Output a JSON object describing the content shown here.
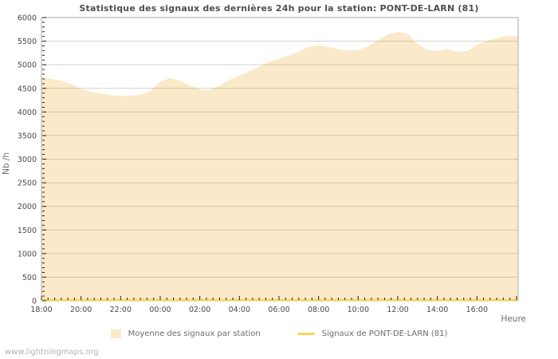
{
  "title": "Statistique des signaux des dernières 24h pour la station: PONT-DE-LARN (81)",
  "watermark": "www.lightningmaps.org",
  "axes": {
    "y_label": "Nb /h",
    "x_label": "Heure",
    "y_tick_labels": [
      "0",
      "500",
      "1000",
      "1500",
      "2000",
      "2500",
      "3000",
      "3500",
      "4000",
      "4500",
      "5000",
      "5500",
      "6000"
    ],
    "x_tick_labels": [
      "18:00",
      "20:00",
      "22:00",
      "00:00",
      "02:00",
      "04:00",
      "06:00",
      "08:00",
      "10:00",
      "12:00",
      "14:00",
      "16:00"
    ]
  },
  "legend": {
    "area_label": "Moyenne des signaux par station",
    "line_label": "Signaux de PONT-DE-LARN (81)"
  },
  "colors": {
    "area_fill": "#faeaca",
    "signal_line": "#fcd45c",
    "grid": "rgba(120,110,90,0.30)",
    "border": "#ababab",
    "tick": "#222222",
    "tick_text": "#4a4a4a",
    "unit_text": "#6e6e6e"
  },
  "chart_data": {
    "type": "area",
    "title": "Statistique des signaux des dernières 24h pour la station: PONT-DE-LARN (81)",
    "xlabel": "Heure",
    "ylabel": "Nb /h",
    "ylim": [
      0,
      6000
    ],
    "y_tick_step": 500,
    "y_minor_step": 100,
    "x_start": "18:00",
    "x_span_hours": 24.08,
    "x_tick_interval_hours": 2,
    "x_minor_interval_hours": 0.3333,
    "x_tick_labels": [
      "18:00",
      "20:00",
      "22:00",
      "00:00",
      "02:00",
      "04:00",
      "06:00",
      "08:00",
      "10:00",
      "12:00",
      "14:00",
      "16:00"
    ],
    "grid": "horizontal-major",
    "legend_position": "bottom-center",
    "sample_interval_minutes": 30,
    "series": [
      {
        "name": "Moyenne des signaux par station",
        "style": "area",
        "color": "#faeaca",
        "values": [
          4720,
          4700,
          4660,
          4590,
          4490,
          4430,
          4390,
          4360,
          4340,
          4340,
          4370,
          4450,
          4640,
          4720,
          4660,
          4560,
          4480,
          4460,
          4560,
          4680,
          4770,
          4860,
          4960,
          5060,
          5130,
          5190,
          5280,
          5380,
          5410,
          5380,
          5330,
          5300,
          5310,
          5390,
          5520,
          5640,
          5690,
          5660,
          5440,
          5320,
          5290,
          5330,
          5280,
          5290,
          5420,
          5510,
          5560,
          5620,
          5600
        ]
      },
      {
        "name": "Signaux de PONT-DE-LARN (81)",
        "style": "line",
        "color": "#fcd45c",
        "constant": 0,
        "note_visible_in_pixels": "flat line at ~0 across the whole 24 h"
      }
    ]
  }
}
